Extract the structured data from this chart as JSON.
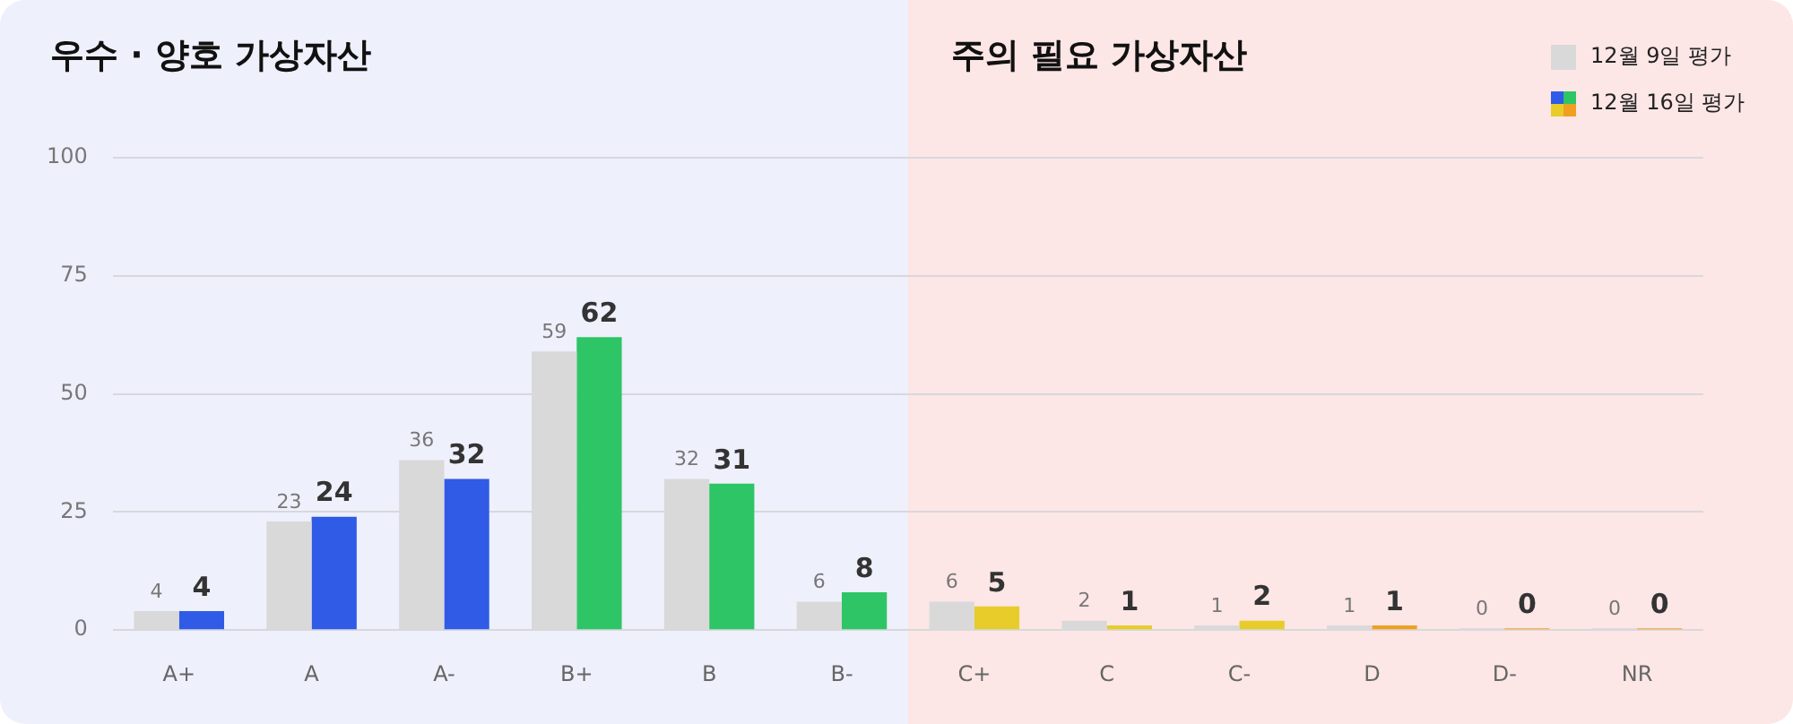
{
  "chart_data": {
    "type": "bar",
    "categories": [
      "A+",
      "A",
      "A-",
      "B+",
      "B",
      "B-",
      "C+",
      "C",
      "C-",
      "D",
      "D-",
      "NR"
    ],
    "series": [
      {
        "name": "12월 9일 평가",
        "color": "#d9d9d9",
        "values": [
          4,
          23,
          36,
          59,
          32,
          6,
          6,
          2,
          1,
          1,
          0,
          0
        ]
      },
      {
        "name": "12월 16일 평가",
        "colors": [
          "#2f5be6",
          "#2f5be6",
          "#2f5be6",
          "#2ec566",
          "#2ec566",
          "#2ec566",
          "#e8cc2a",
          "#e8cc2a",
          "#e8cc2a",
          "#f0a020",
          "#f0a020",
          "#f0a020"
        ],
        "values": [
          4,
          24,
          32,
          62,
          31,
          8,
          5,
          1,
          2,
          1,
          0,
          0
        ]
      }
    ],
    "ylim": [
      0,
      100
    ],
    "yticks": [
      0,
      25,
      50,
      75,
      100
    ],
    "grid": "y",
    "legend": "top right",
    "data_labels": true,
    "bands": [
      {
        "axis": "x",
        "from": "A+",
        "to": "B-",
        "label": "우수 · 양호 가상자산",
        "color": "#eef0fc"
      },
      {
        "axis": "x",
        "from": "C+",
        "to": "NR",
        "label": "주의 필요 가상자산",
        "color": "#fde6e6"
      }
    ]
  }
}
